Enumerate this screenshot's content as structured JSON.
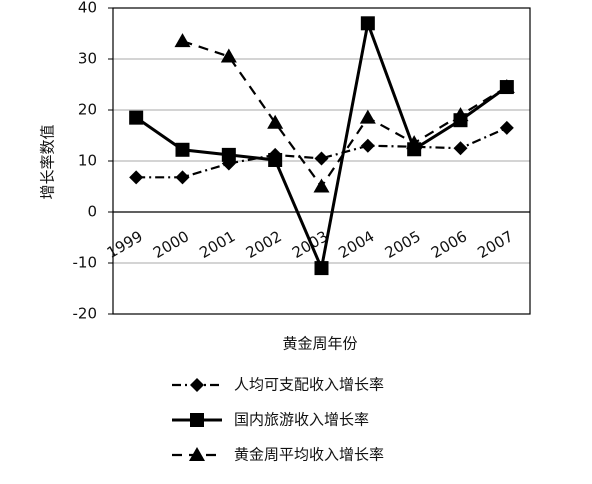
{
  "chart_data": {
    "type": "line",
    "y_label": "增长率数值",
    "x_label": "黄金周年份",
    "categories": [
      "1999",
      "2000",
      "2001",
      "2002",
      "2003",
      "2004",
      "2005",
      "2006",
      "2007"
    ],
    "series": [
      {
        "name": "人均可支配收入增长率",
        "color": "#000000",
        "values": [
          6.8,
          6.8,
          9.5,
          11.2,
          10.5,
          13,
          12.8,
          12.5,
          16.5
        ]
      },
      {
        "name": "国内旅游收入增长率",
        "color": "#000000",
        "values": [
          18.5,
          12.2,
          11.2,
          10.2,
          -11,
          37,
          12.3,
          18,
          24.5
        ]
      },
      {
        "name": "黄金周平均收入增长率",
        "color": "#000000",
        "values": [
          null,
          33.5,
          30.5,
          17.5,
          5,
          18.5,
          13.5,
          19,
          24.5
        ]
      }
    ],
    "ylim": [
      -20,
      40
    ],
    "yticks": [
      -20,
      -10,
      0,
      10,
      20,
      30,
      40
    ],
    "grid": true
  }
}
